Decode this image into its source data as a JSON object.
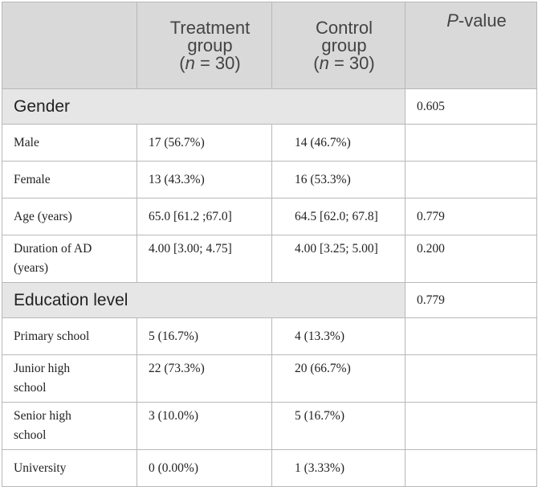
{
  "header": {
    "col0": "",
    "treatment": [
      "Treatment",
      "group",
      "(n = 30)"
    ],
    "control": [
      "Control",
      "group",
      "(n = 30)"
    ],
    "pvalue": "P-value"
  },
  "sections": {
    "gender": {
      "label": "Gender",
      "p": "0.605",
      "rows": [
        {
          "label": "Male",
          "treatment": "17 (56.7%)",
          "control": "14 (46.7%)",
          "p": ""
        },
        {
          "label": "Female",
          "treatment": "13 (43.3%)",
          "control": "16 (53.3%)",
          "p": ""
        },
        {
          "label": "Age (years)",
          "treatment": "65.0 [61.2 ;67.0]",
          "control": "64.5 [62.0; 67.8]",
          "p": "0.779"
        },
        {
          "label": [
            "Duration of AD",
            "(years)"
          ],
          "treatment": "4.00 [3.00; 4.75]",
          "control": "4.00 [3.25; 5.00]",
          "p": "0.200"
        }
      ]
    },
    "education": {
      "label": "Education level",
      "p": "0.779",
      "rows": [
        {
          "label": "Primary school",
          "treatment": "5 (16.7%)",
          "control": "4 (13.3%)",
          "p": ""
        },
        {
          "label": [
            "Junior high",
            "school"
          ],
          "treatment": "22 (73.3%)",
          "control": "20 (66.7%)",
          "p": ""
        },
        {
          "label": [
            "Senior high",
            "school"
          ],
          "treatment": "3 (10.0%)",
          "control": "5 (16.7%)",
          "p": ""
        },
        {
          "label": "University",
          "treatment": "0 (0.00%)",
          "control": "1 (3.33%)",
          "p": ""
        }
      ]
    }
  }
}
